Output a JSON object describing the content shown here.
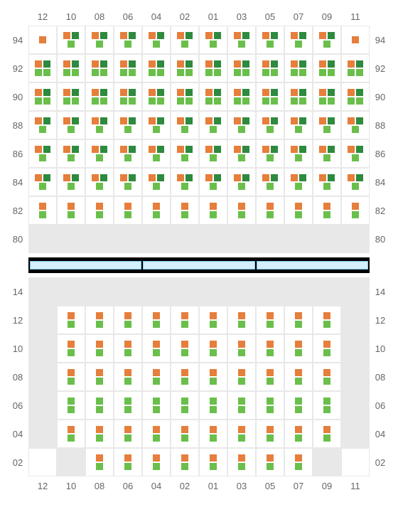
{
  "colors": {
    "orange": "#e67e3c",
    "lightgreen": "#6abf4b",
    "darkgreen": "#2d8a3e",
    "empty_bg": "#e8e8e8",
    "cell_border": "#e8e8e8",
    "label_color": "#666666",
    "divider_bg": "#000000",
    "divider_seg_bg": "#d4eefb",
    "divider_seg_border": "#7ec8ec"
  },
  "legend": {
    "O": "orange",
    "L": "lightgreen",
    "D": "darkgreen"
  },
  "columns": [
    "12",
    "10",
    "08",
    "06",
    "04",
    "02",
    "01",
    "03",
    "05",
    "07",
    "09",
    "11"
  ],
  "upper": {
    "rows": [
      "94",
      "92",
      "90",
      "88",
      "86",
      "84",
      "82",
      "80"
    ],
    "cells": [
      [
        [
          [
            "O"
          ],
          []
        ],
        [
          [
            "O",
            "D"
          ],
          [
            "L"
          ]
        ],
        [
          [
            "O",
            "D"
          ],
          [
            "L"
          ]
        ],
        [
          [
            "O",
            "D"
          ],
          [
            "L"
          ]
        ],
        [
          [
            "O",
            "D"
          ],
          [
            "L"
          ]
        ],
        [
          [
            "O",
            "D"
          ],
          [
            "L"
          ]
        ],
        [
          [
            "O",
            "D"
          ],
          [
            "L"
          ]
        ],
        [
          [
            "O",
            "D"
          ],
          [
            "L"
          ]
        ],
        [
          [
            "O",
            "D"
          ],
          [
            "L"
          ]
        ],
        [
          [
            "O",
            "D"
          ],
          [
            "L"
          ]
        ],
        [
          [
            "O",
            "D"
          ],
          [
            "L"
          ]
        ],
        [
          [
            "O"
          ],
          []
        ]
      ],
      [
        [
          [
            "O",
            "D"
          ],
          [
            "L",
            "L"
          ]
        ],
        [
          [
            "O",
            "D"
          ],
          [
            "L",
            "L"
          ]
        ],
        [
          [
            "O",
            "D"
          ],
          [
            "L",
            "L"
          ]
        ],
        [
          [
            "O",
            "D"
          ],
          [
            "L",
            "L"
          ]
        ],
        [
          [
            "O",
            "D"
          ],
          [
            "L",
            "L"
          ]
        ],
        [
          [
            "O",
            "D"
          ],
          [
            "L",
            "L"
          ]
        ],
        [
          [
            "O",
            "D"
          ],
          [
            "L",
            "L"
          ]
        ],
        [
          [
            "O",
            "D"
          ],
          [
            "L",
            "L"
          ]
        ],
        [
          [
            "O",
            "D"
          ],
          [
            "L",
            "L"
          ]
        ],
        [
          [
            "O",
            "D"
          ],
          [
            "L",
            "L"
          ]
        ],
        [
          [
            "O",
            "D"
          ],
          [
            "L",
            "L"
          ]
        ],
        [
          [
            "O",
            "D"
          ],
          [
            "L",
            "L"
          ]
        ]
      ],
      [
        [
          [
            "O",
            "D"
          ],
          [
            "L",
            "L"
          ]
        ],
        [
          [
            "O",
            "D"
          ],
          [
            "L",
            "L"
          ]
        ],
        [
          [
            "O",
            "D"
          ],
          [
            "L",
            "L"
          ]
        ],
        [
          [
            "O",
            "D"
          ],
          [
            "L",
            "L"
          ]
        ],
        [
          [
            "O",
            "D"
          ],
          [
            "L",
            "L"
          ]
        ],
        [
          [
            "O",
            "D"
          ],
          [
            "L",
            "L"
          ]
        ],
        [
          [
            "O",
            "D"
          ],
          [
            "L",
            "L"
          ]
        ],
        [
          [
            "O",
            "D"
          ],
          [
            "L",
            "L"
          ]
        ],
        [
          [
            "O",
            "D"
          ],
          [
            "L",
            "L"
          ]
        ],
        [
          [
            "O",
            "D"
          ],
          [
            "L",
            "L"
          ]
        ],
        [
          [
            "O",
            "D"
          ],
          [
            "L",
            "L"
          ]
        ],
        [
          [
            "O",
            "D"
          ],
          [
            "L",
            "L"
          ]
        ]
      ],
      [
        [
          [
            "O",
            "D"
          ],
          [
            "L"
          ]
        ],
        [
          [
            "O",
            "D"
          ],
          [
            "L"
          ]
        ],
        [
          [
            "O",
            "D"
          ],
          [
            "L"
          ]
        ],
        [
          [
            "O",
            "D"
          ],
          [
            "L"
          ]
        ],
        [
          [
            "O",
            "D"
          ],
          [
            "L"
          ]
        ],
        [
          [
            "O",
            "D"
          ],
          [
            "L"
          ]
        ],
        [
          [
            "O",
            "D"
          ],
          [
            "L"
          ]
        ],
        [
          [
            "O",
            "D"
          ],
          [
            "L"
          ]
        ],
        [
          [
            "O",
            "D"
          ],
          [
            "L"
          ]
        ],
        [
          [
            "O",
            "D"
          ],
          [
            "L"
          ]
        ],
        [
          [
            "O",
            "D"
          ],
          [
            "L"
          ]
        ],
        [
          [
            "O",
            "D"
          ],
          [
            "L"
          ]
        ]
      ],
      [
        [
          [
            "O",
            "D"
          ],
          [
            "L"
          ]
        ],
        [
          [
            "O",
            "D"
          ],
          [
            "L"
          ]
        ],
        [
          [
            "O",
            "D"
          ],
          [
            "L"
          ]
        ],
        [
          [
            "O",
            "D"
          ],
          [
            "L"
          ]
        ],
        [
          [
            "O",
            "D"
          ],
          [
            "L"
          ]
        ],
        [
          [
            "O",
            "D"
          ],
          [
            "L"
          ]
        ],
        [
          [
            "O",
            "D"
          ],
          [
            "L"
          ]
        ],
        [
          [
            "O",
            "D"
          ],
          [
            "L"
          ]
        ],
        [
          [
            "O",
            "D"
          ],
          [
            "L"
          ]
        ],
        [
          [
            "O",
            "D"
          ],
          [
            "L"
          ]
        ],
        [
          [
            "O",
            "D"
          ],
          [
            "L"
          ]
        ],
        [
          [
            "O",
            "D"
          ],
          [
            "L"
          ]
        ]
      ],
      [
        [
          [
            "O",
            "D"
          ],
          [
            "L"
          ]
        ],
        [
          [
            "O",
            "D"
          ],
          [
            "L"
          ]
        ],
        [
          [
            "O",
            "D"
          ],
          [
            "L"
          ]
        ],
        [
          [
            "O",
            "D"
          ],
          [
            "L"
          ]
        ],
        [
          [
            "O",
            "D"
          ],
          [
            "L"
          ]
        ],
        [
          [
            "O",
            "D"
          ],
          [
            "L"
          ]
        ],
        [
          [
            "O",
            "D"
          ],
          [
            "L"
          ]
        ],
        [
          [
            "O",
            "D"
          ],
          [
            "L"
          ]
        ],
        [
          [
            "O",
            "D"
          ],
          [
            "L"
          ]
        ],
        [
          [
            "O",
            "D"
          ],
          [
            "L"
          ]
        ],
        [
          [
            "O",
            "D"
          ],
          [
            "L"
          ]
        ],
        [
          [
            "O",
            "D"
          ],
          [
            "L"
          ]
        ]
      ],
      [
        [
          [
            "O"
          ],
          [
            "L"
          ]
        ],
        [
          [
            "O"
          ],
          [
            "L"
          ]
        ],
        [
          [
            "O"
          ],
          [
            "L"
          ]
        ],
        [
          [
            "O"
          ],
          [
            "L"
          ]
        ],
        [
          [
            "O"
          ],
          [
            "L"
          ]
        ],
        [
          [
            "O"
          ],
          [
            "L"
          ]
        ],
        [
          [
            "O"
          ],
          [
            "L"
          ]
        ],
        [
          [
            "O"
          ],
          [
            "L"
          ]
        ],
        [
          [
            "O"
          ],
          [
            "L"
          ]
        ],
        [
          [
            "O"
          ],
          [
            "L"
          ]
        ],
        [
          [
            "O"
          ],
          [
            "L"
          ]
        ],
        [
          [
            "O"
          ],
          [
            "L"
          ]
        ]
      ],
      [
        "E",
        "E",
        "E",
        "E",
        "E",
        "E",
        "E",
        "E",
        "E",
        "E",
        "E",
        "E"
      ]
    ]
  },
  "lower": {
    "rows": [
      "14",
      "12",
      "10",
      "08",
      "06",
      "04",
      "02"
    ],
    "cells": [
      [
        "E",
        "E",
        "E",
        "E",
        "E",
        "E",
        "E",
        "E",
        "E",
        "E",
        "E",
        "E"
      ],
      [
        "E",
        [
          [
            "O"
          ],
          [
            "L"
          ]
        ],
        [
          [
            "O"
          ],
          [
            "L"
          ]
        ],
        [
          [
            "O"
          ],
          [
            "L"
          ]
        ],
        [
          [
            "O"
          ],
          [
            "L"
          ]
        ],
        [
          [
            "O"
          ],
          [
            "L"
          ]
        ],
        [
          [
            "O"
          ],
          [
            "L"
          ]
        ],
        [
          [
            "O"
          ],
          [
            "L"
          ]
        ],
        [
          [
            "O"
          ],
          [
            "L"
          ]
        ],
        [
          [
            "O"
          ],
          [
            "L"
          ]
        ],
        [
          [
            "O"
          ],
          [
            "L"
          ]
        ],
        "E"
      ],
      [
        "E",
        [
          [
            "O"
          ],
          [
            "L"
          ]
        ],
        [
          [
            "O"
          ],
          [
            "L"
          ]
        ],
        [
          [
            "O"
          ],
          [
            "L"
          ]
        ],
        [
          [
            "O"
          ],
          [
            "L"
          ]
        ],
        [
          [
            "O"
          ],
          [
            "L"
          ]
        ],
        [
          [
            "O"
          ],
          [
            "L"
          ]
        ],
        [
          [
            "O"
          ],
          [
            "L"
          ]
        ],
        [
          [
            "O"
          ],
          [
            "L"
          ]
        ],
        [
          [
            "O"
          ],
          [
            "L"
          ]
        ],
        [
          [
            "O"
          ],
          [
            "L"
          ]
        ],
        "E"
      ],
      [
        "E",
        [
          [
            "O"
          ],
          [
            "L"
          ]
        ],
        [
          [
            "O"
          ],
          [
            "L"
          ]
        ],
        [
          [
            "O"
          ],
          [
            "L"
          ]
        ],
        [
          [
            "O"
          ],
          [
            "L"
          ]
        ],
        [
          [
            "O"
          ],
          [
            "L"
          ]
        ],
        [
          [
            "O"
          ],
          [
            "L"
          ]
        ],
        [
          [
            "O"
          ],
          [
            "L"
          ]
        ],
        [
          [
            "O"
          ],
          [
            "L"
          ]
        ],
        [
          [
            "O"
          ],
          [
            "L"
          ]
        ],
        [
          [
            "O"
          ],
          [
            "L"
          ]
        ],
        "E"
      ],
      [
        "E",
        [
          [
            "L"
          ],
          [
            "L"
          ]
        ],
        [
          [
            "L"
          ],
          [
            "L"
          ]
        ],
        [
          [
            "L"
          ],
          [
            "L"
          ]
        ],
        [
          [
            "L"
          ],
          [
            "L"
          ]
        ],
        [
          [
            "L"
          ],
          [
            "L"
          ]
        ],
        [
          [
            "L"
          ],
          [
            "L"
          ]
        ],
        [
          [
            "L"
          ],
          [
            "L"
          ]
        ],
        [
          [
            "L"
          ],
          [
            "L"
          ]
        ],
        [
          [
            "L"
          ],
          [
            "L"
          ]
        ],
        [
          [
            "L"
          ],
          [
            "L"
          ]
        ],
        "E"
      ],
      [
        "E",
        [
          [
            "O"
          ],
          [
            "L"
          ]
        ],
        [
          [
            "O"
          ],
          [
            "L"
          ]
        ],
        [
          [
            "O"
          ],
          [
            "L"
          ]
        ],
        [
          [
            "O"
          ],
          [
            "L"
          ]
        ],
        [
          [
            "O"
          ],
          [
            "L"
          ]
        ],
        [
          [
            "O"
          ],
          [
            "L"
          ]
        ],
        [
          [
            "O"
          ],
          [
            "L"
          ]
        ],
        [
          [
            "O"
          ],
          [
            "L"
          ]
        ],
        [
          [
            "O"
          ],
          [
            "L"
          ]
        ],
        [
          [
            "O"
          ],
          [
            "L"
          ]
        ],
        "E"
      ],
      [
        [
          [],
          []
        ],
        "E",
        [
          [
            "O"
          ],
          [
            "L"
          ]
        ],
        [
          [
            "O"
          ],
          [
            "L"
          ]
        ],
        [
          [
            "O"
          ],
          [
            "L"
          ]
        ],
        [
          [
            "O"
          ],
          [
            "L"
          ]
        ],
        [
          [
            "O"
          ],
          [
            "L"
          ]
        ],
        [
          [
            "O"
          ],
          [
            "L"
          ]
        ],
        [
          [
            "O"
          ],
          [
            "L"
          ]
        ],
        [
          [
            "O"
          ],
          [
            "L"
          ]
        ],
        "E",
        [
          [],
          []
        ]
      ]
    ]
  }
}
